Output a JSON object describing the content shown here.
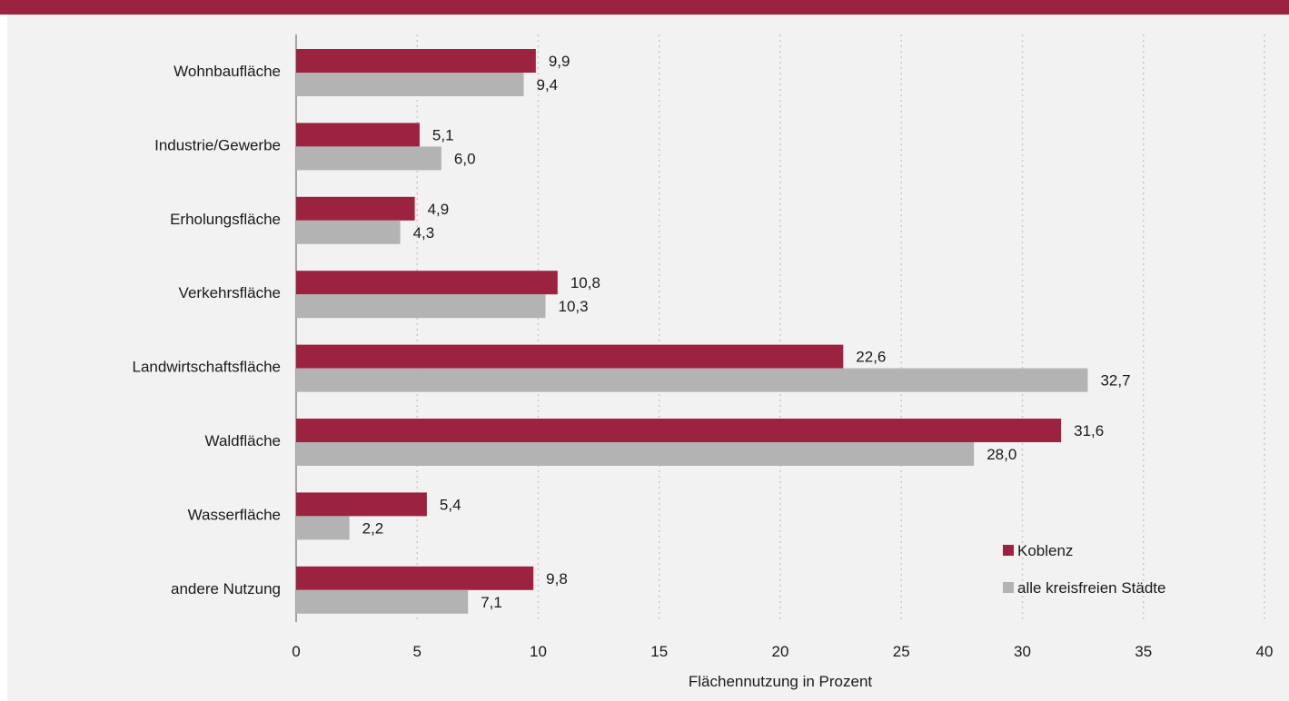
{
  "chart_data": {
    "type": "bar",
    "orientation": "horizontal",
    "categories": [
      "Wohnbaufläche",
      "Industrie/Gewerbe",
      "Erholungsfläche",
      "Verkehrsfläche",
      "Landwirtschaftsfläche",
      "Waldfläche",
      "Wasserfläche",
      "andere Nutzung"
    ],
    "series": [
      {
        "name": "Koblenz",
        "color": "#9b2340",
        "values": [
          9.9,
          5.1,
          4.9,
          10.8,
          22.6,
          31.6,
          5.4,
          9.8
        ],
        "labels": [
          "9,9",
          "5,1",
          "4,9",
          "10,8",
          "22,6",
          "31,6",
          "5,4",
          "9,8"
        ]
      },
      {
        "name": "alle kreisfreien Städte",
        "color": "#b3b3b3",
        "values": [
          9.4,
          6.0,
          4.3,
          10.3,
          32.7,
          28.0,
          2.2,
          7.1
        ],
        "labels": [
          "9,4",
          "6,0",
          "4,3",
          "10,3",
          "32,7",
          "28,0",
          "2,2",
          "7,1"
        ]
      }
    ],
    "xlabel": "Flächennutzung in Prozent",
    "xlim": [
      0,
      40
    ],
    "xticks": [
      0,
      5,
      10,
      15,
      20,
      25,
      30,
      35,
      40
    ],
    "grid": "vertical dotted",
    "legend_position": "bottom-right"
  }
}
